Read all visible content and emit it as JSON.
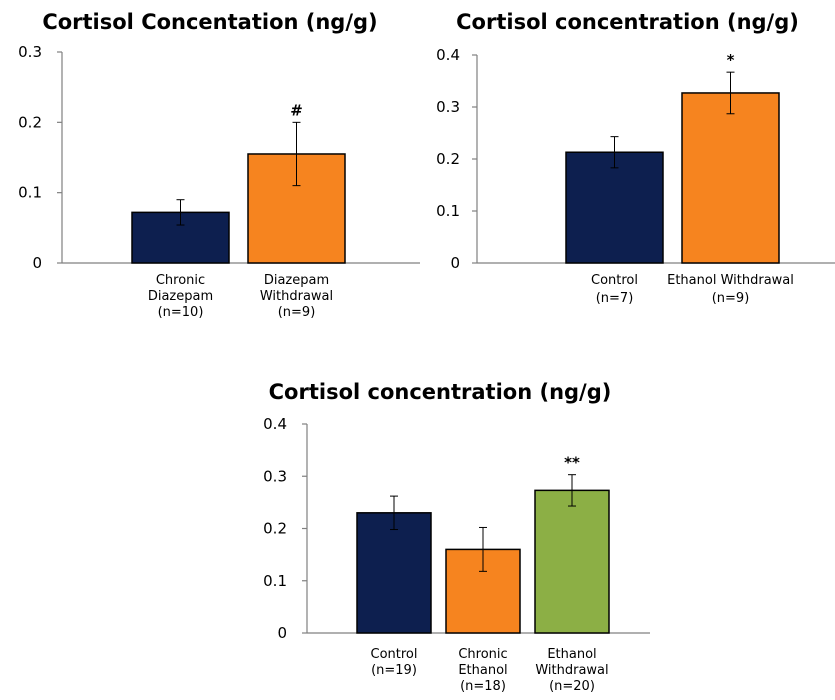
{
  "chart_data": [
    {
      "type": "bar",
      "title": "Cortisol Concentation (ng/g)",
      "ylim": [
        0,
        0.3
      ],
      "yticks": [
        "0",
        "0.1",
        "0.2",
        "0.3"
      ],
      "categories": [
        [
          "Chronic",
          "Diazepam",
          "(n=10)"
        ],
        [
          "Diazepam",
          "Withdrawal",
          "(n=9)"
        ]
      ],
      "values": [
        0.072,
        0.155
      ],
      "errors": [
        0.018,
        0.045
      ],
      "colors": [
        "#0d1f4f",
        "#f6841f"
      ],
      "annotations": [
        "",
        "#"
      ],
      "grid": false
    },
    {
      "type": "bar",
      "title": "Cortisol concentration (ng/g)",
      "ylim": [
        0,
        0.4
      ],
      "yticks": [
        "0",
        "0.1",
        "0.2",
        "0.3",
        "0.4"
      ],
      "categories": [
        [
          "Control",
          "(n=7)"
        ],
        [
          "Ethanol Withdrawal",
          "(n=9)"
        ]
      ],
      "values": [
        0.213,
        0.327
      ],
      "errors": [
        0.03,
        0.04
      ],
      "colors": [
        "#0d1f4f",
        "#f6841f"
      ],
      "annotations": [
        "",
        "*"
      ],
      "grid": false
    },
    {
      "type": "bar",
      "title": "Cortisol concentration (ng/g)",
      "ylim": [
        0,
        0.4
      ],
      "yticks": [
        "0",
        "0.1",
        "0.2",
        "0.3",
        "0.4"
      ],
      "categories": [
        [
          "Control",
          "(n=19)"
        ],
        [
          "Chronic",
          "Ethanol",
          "(n=18)"
        ],
        [
          "Ethanol",
          "Withdrawal",
          "(n=20)"
        ]
      ],
      "values": [
        0.23,
        0.16,
        0.273
      ],
      "errors": [
        0.032,
        0.042,
        0.03
      ],
      "colors": [
        "#0d1f4f",
        "#f6841f",
        "#8caf45"
      ],
      "annotations": [
        "",
        "",
        "**"
      ],
      "grid": false
    }
  ]
}
